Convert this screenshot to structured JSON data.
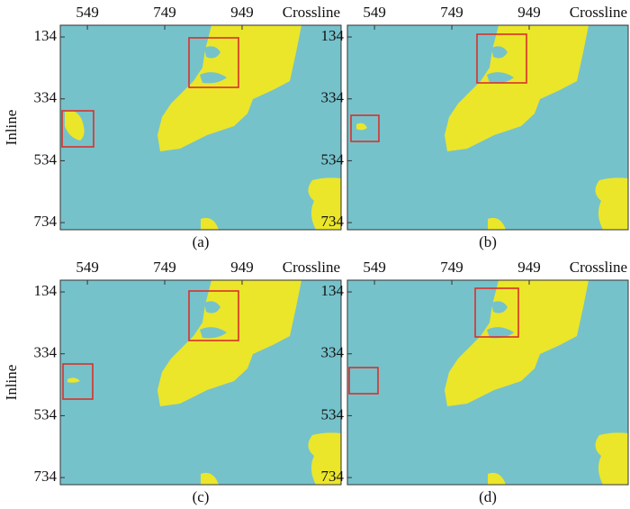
{
  "chart_data": [
    {
      "type": "map",
      "xlabel": "Crossline",
      "ylabel": "Inline",
      "caption": "(a)",
      "xlim": [
        479,
        1205
      ],
      "ylim": [
        96,
        757
      ],
      "xticks": [
        549,
        749,
        949
      ],
      "yticks": [
        134,
        334,
        534,
        734
      ]
    },
    {
      "type": "map",
      "xlabel": "Crossline",
      "caption": "(b)",
      "xlim": [
        479,
        1205
      ],
      "ylim": [
        96,
        757
      ],
      "xticks": [
        549,
        749,
        949
      ],
      "yticks": [
        134,
        334,
        534,
        734
      ]
    },
    {
      "type": "map",
      "xlabel": "Crossline",
      "ylabel": "Inline",
      "caption": "(c)",
      "xlim": [
        479,
        1205
      ],
      "ylim": [
        96,
        757
      ],
      "xticks": [
        549,
        749,
        949
      ],
      "yticks": [
        134,
        334,
        534,
        734
      ]
    },
    {
      "type": "map",
      "xlabel": "Crossline",
      "caption": "(d)",
      "xlim": [
        479,
        1205
      ],
      "ylim": [
        96,
        757
      ],
      "xticks": [
        549,
        749,
        949
      ],
      "yticks": [
        134,
        334,
        534,
        734
      ]
    }
  ]
}
